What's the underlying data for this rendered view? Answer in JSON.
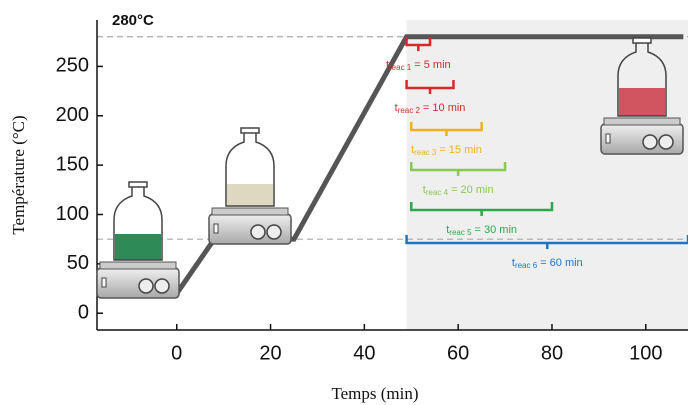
{
  "chart_data": {
    "type": "line",
    "y_label": "Température (°C)",
    "x_label": "Temps (min)",
    "xlim": [
      -17,
      109
    ],
    "ylim": [
      -17,
      297
    ],
    "xticks": [
      0,
      20,
      40,
      60,
      80,
      100
    ],
    "yticks": [
      0,
      50,
      100,
      150,
      200,
      250
    ],
    "x": [
      -3,
      0,
      8,
      25,
      49,
      108
    ],
    "series": [
      {
        "color": "#555555",
        "values": [
          20,
          20,
          75,
          75,
          280,
          280
        ]
      }
    ],
    "reference_lines": [
      {
        "value": 280,
        "label": "280°C"
      },
      {
        "value": 75
      }
    ],
    "shade_from": 49,
    "symbol": "t",
    "reactions": [
      {
        "sub": "reac 1",
        "label": "= 5 min",
        "start": 49,
        "duration": 5,
        "color": "#d42a2a"
      },
      {
        "sub": "reac 2",
        "label": "= 10 min",
        "start": 49,
        "duration": 10,
        "color": "#d42a2a"
      },
      {
        "sub": "reac 3",
        "label": "= 15 min",
        "start": 50,
        "duration": 15,
        "color": "#f0b020"
      },
      {
        "sub": "reac 4",
        "label": "= 20 min",
        "start": 50,
        "duration": 20,
        "color": "#8cc850"
      },
      {
        "sub": "reac 5",
        "label": "= 30 min",
        "start": 50,
        "duration": 30,
        "color": "#2aa84a"
      },
      {
        "sub": "reac 6",
        "label": "= 60 min",
        "start": 49,
        "duration": 60,
        "color": "#1f74c4"
      }
    ]
  }
}
